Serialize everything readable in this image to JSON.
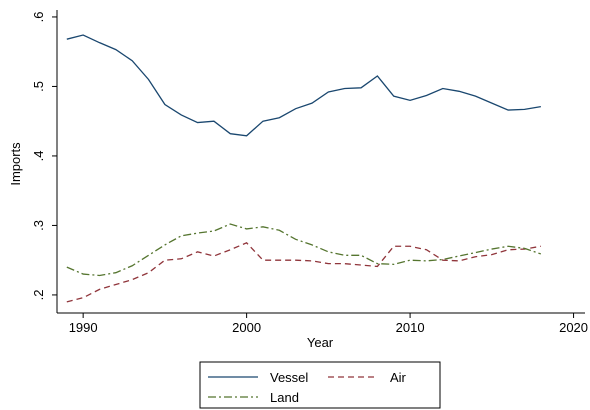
{
  "chart_data": {
    "type": "line",
    "x_label": "Year",
    "y_label": "Imports",
    "x": [
      1989,
      1990,
      1991,
      1992,
      1993,
      1994,
      1995,
      1996,
      1997,
      1998,
      1999,
      2000,
      2001,
      2002,
      2003,
      2004,
      2005,
      2006,
      2007,
      2008,
      2009,
      2010,
      2011,
      2012,
      2013,
      2014,
      2015,
      2016,
      2017,
      2018
    ],
    "series": [
      {
        "name": "Vessel",
        "color": "#1a476f",
        "dash": "solid",
        "values": [
          0.568,
          0.574,
          0.563,
          0.553,
          0.537,
          0.51,
          0.474,
          0.459,
          0.448,
          0.45,
          0.432,
          0.429,
          0.45,
          0.455,
          0.468,
          0.476,
          0.492,
          0.497,
          0.498,
          0.515,
          0.486,
          0.48,
          0.487,
          0.497,
          0.493,
          0.486,
          0.476,
          0.466,
          0.467,
          0.471
        ]
      },
      {
        "name": "Air",
        "color": "#90353b",
        "dash": "dash",
        "values": [
          0.19,
          0.196,
          0.208,
          0.215,
          0.222,
          0.232,
          0.25,
          0.252,
          0.262,
          0.256,
          0.265,
          0.275,
          0.25,
          0.25,
          0.25,
          0.249,
          0.245,
          0.245,
          0.243,
          0.241,
          0.27,
          0.27,
          0.265,
          0.25,
          0.249,
          0.255,
          0.258,
          0.265,
          0.266,
          0.27
        ]
      },
      {
        "name": "Land",
        "color": "#55752f",
        "dash": "dashdot",
        "values": [
          0.24,
          0.23,
          0.228,
          0.232,
          0.242,
          0.257,
          0.272,
          0.285,
          0.289,
          0.292,
          0.302,
          0.295,
          0.298,
          0.293,
          0.28,
          0.272,
          0.262,
          0.257,
          0.257,
          0.245,
          0.244,
          0.25,
          0.249,
          0.251,
          0.256,
          0.261,
          0.266,
          0.27,
          0.267,
          0.259
        ]
      }
    ],
    "xlim": [
      1988.4,
      2020.7
    ],
    "xticks": [
      1990,
      2000,
      2010,
      2020
    ],
    "ylim": [
      0.174,
      0.61
    ],
    "yticks": [
      {
        "value": 0.2,
        "label": ".2"
      },
      {
        "value": 0.3,
        "label": ".3"
      },
      {
        "value": 0.4,
        "label": ".4"
      },
      {
        "value": 0.5,
        "label": ".5"
      },
      {
        "value": 0.6,
        "label": ".6"
      }
    ],
    "legend": "bottom"
  }
}
